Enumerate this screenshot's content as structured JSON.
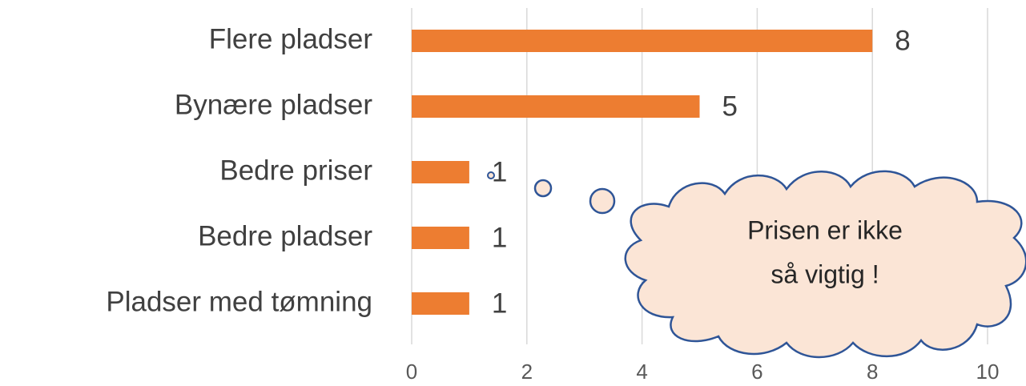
{
  "chart_data": {
    "type": "bar",
    "orientation": "horizontal",
    "categories": [
      "Flere pladser",
      "Bynære pladser",
      "Bedre priser",
      "Bedre pladser",
      "Pladser med tømning"
    ],
    "values": [
      8,
      5,
      1,
      1,
      1
    ],
    "color": "#ed7d31",
    "xlim": [
      0,
      10
    ],
    "xticks": [
      0,
      2,
      4,
      6,
      8,
      10
    ],
    "grid": true,
    "annotation": [
      "Prisen er ikke",
      "så vigtig !"
    ]
  }
}
